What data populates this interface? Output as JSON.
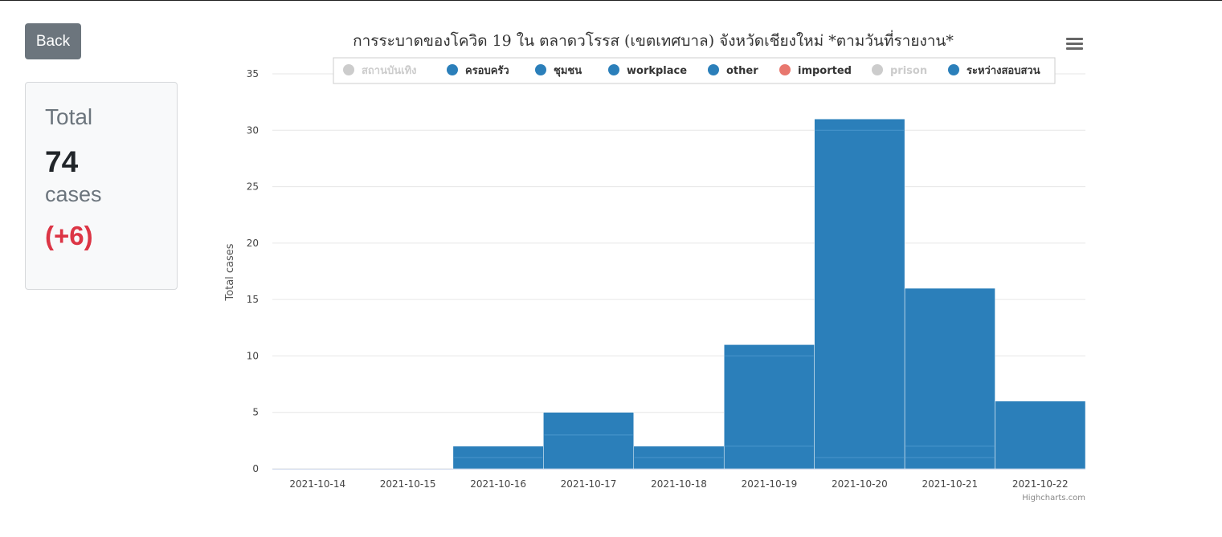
{
  "back_button": {
    "label": "Back"
  },
  "summary": {
    "heading": "Total",
    "count": "74",
    "unit": "cases",
    "delta": "(+6)"
  },
  "colors": {
    "bar": "#2b7fba",
    "bar_divider": "#4a96cc",
    "legend_active": "#2b7fba",
    "legend_imported": "#e8776e",
    "legend_inactive": "#cccccc",
    "delta": "#dc3545",
    "button": "#6c757d"
  },
  "menu_icon": "hamburger-menu-icon",
  "credits": "Highcharts.com",
  "chart_data": {
    "type": "bar",
    "stacked": true,
    "title": "การระบาดของโควิด 19 ใน ตลาดวโรรส (เขตเทศบาล) จังหวัดเชียงใหม่ *ตามวันที่รายงาน*",
    "xlabel": "",
    "ylabel": "Total cases",
    "categories": [
      "2021-10-14",
      "2021-10-15",
      "2021-10-16",
      "2021-10-17",
      "2021-10-18",
      "2021-10-19",
      "2021-10-20",
      "2021-10-21",
      "2021-10-22"
    ],
    "totals": [
      0,
      0,
      2,
      5,
      2,
      11,
      31,
      16,
      6
    ],
    "ylim": [
      0,
      35
    ],
    "yticks": [
      0,
      5,
      10,
      15,
      20,
      25,
      30,
      35
    ],
    "grid": true,
    "legend_position": "top",
    "legend": [
      {
        "name": "สถานบันเทิง",
        "visible": false,
        "color": "#cccccc"
      },
      {
        "name": "ครอบครัว",
        "visible": true,
        "color": "#2b7fba"
      },
      {
        "name": "ชุมชน",
        "visible": true,
        "color": "#2b7fba"
      },
      {
        "name": "workplace",
        "visible": true,
        "color": "#2b7fba"
      },
      {
        "name": "other",
        "visible": true,
        "color": "#2b7fba"
      },
      {
        "name": "imported",
        "visible": true,
        "color": "#e8776e"
      },
      {
        "name": "prison",
        "visible": false,
        "color": "#cccccc"
      },
      {
        "name": "ระหว่างสอบสวน",
        "visible": true,
        "color": "#2b7fba"
      }
    ],
    "segment_boundaries": [
      [],
      [],
      [
        1
      ],
      [
        3
      ],
      [
        1
      ],
      [
        2,
        10
      ],
      [
        1,
        30
      ],
      [
        1,
        2
      ],
      []
    ]
  }
}
